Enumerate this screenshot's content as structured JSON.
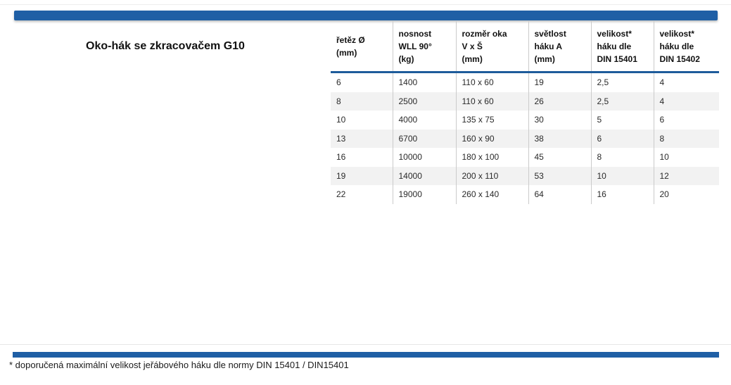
{
  "title": "Oko-hák se zkracovačem G10",
  "footnote": "* doporučená maximální velikost jeřábového háku dle normy DIN 15401 / DIN15401",
  "colors": {
    "accent_blue": "#1F5FA5",
    "header_rule_blue": "#1E5C9B",
    "stripe_gray": "#F2F2F2",
    "grid_line_gray": "#CBCBCB"
  },
  "table": {
    "headers": [
      {
        "key": "retez-prumer",
        "lines": [
          "řetěz Ø",
          "(mm)"
        ]
      },
      {
        "key": "nosnost-wll",
        "lines": [
          "nosnost",
          "WLL 90°",
          "(kg)"
        ]
      },
      {
        "key": "rozmer-oka",
        "lines": [
          "rozměr oka",
          "V x Š",
          "(mm)"
        ]
      },
      {
        "key": "svetlost-haku",
        "lines": [
          "světlost",
          "háku A",
          "(mm)"
        ]
      },
      {
        "key": "velikost-din-15401",
        "lines": [
          "velikost*",
          "háku dle",
          "DIN 15401"
        ]
      },
      {
        "key": "velikost-din-15402",
        "lines": [
          "velikost*",
          "háku dle",
          "DIN 15402"
        ]
      }
    ],
    "rows": [
      [
        "6",
        "1400",
        "110 x 60",
        "19",
        "2,5",
        "4"
      ],
      [
        "8",
        "2500",
        "110 x 60",
        "26",
        "2,5",
        "4"
      ],
      [
        "10",
        "4000",
        "135 x 75",
        "30",
        "5",
        "6"
      ],
      [
        "13",
        "6700",
        "160 x 90",
        "38",
        "6",
        "8"
      ],
      [
        "16",
        "10000",
        "180 x 100",
        "45",
        "8",
        "10"
      ],
      [
        "19",
        "14000",
        "200 x 110",
        "53",
        "10",
        "12"
      ],
      [
        "22",
        "19000",
        "260 x 140",
        "64",
        "16",
        "20"
      ]
    ]
  }
}
